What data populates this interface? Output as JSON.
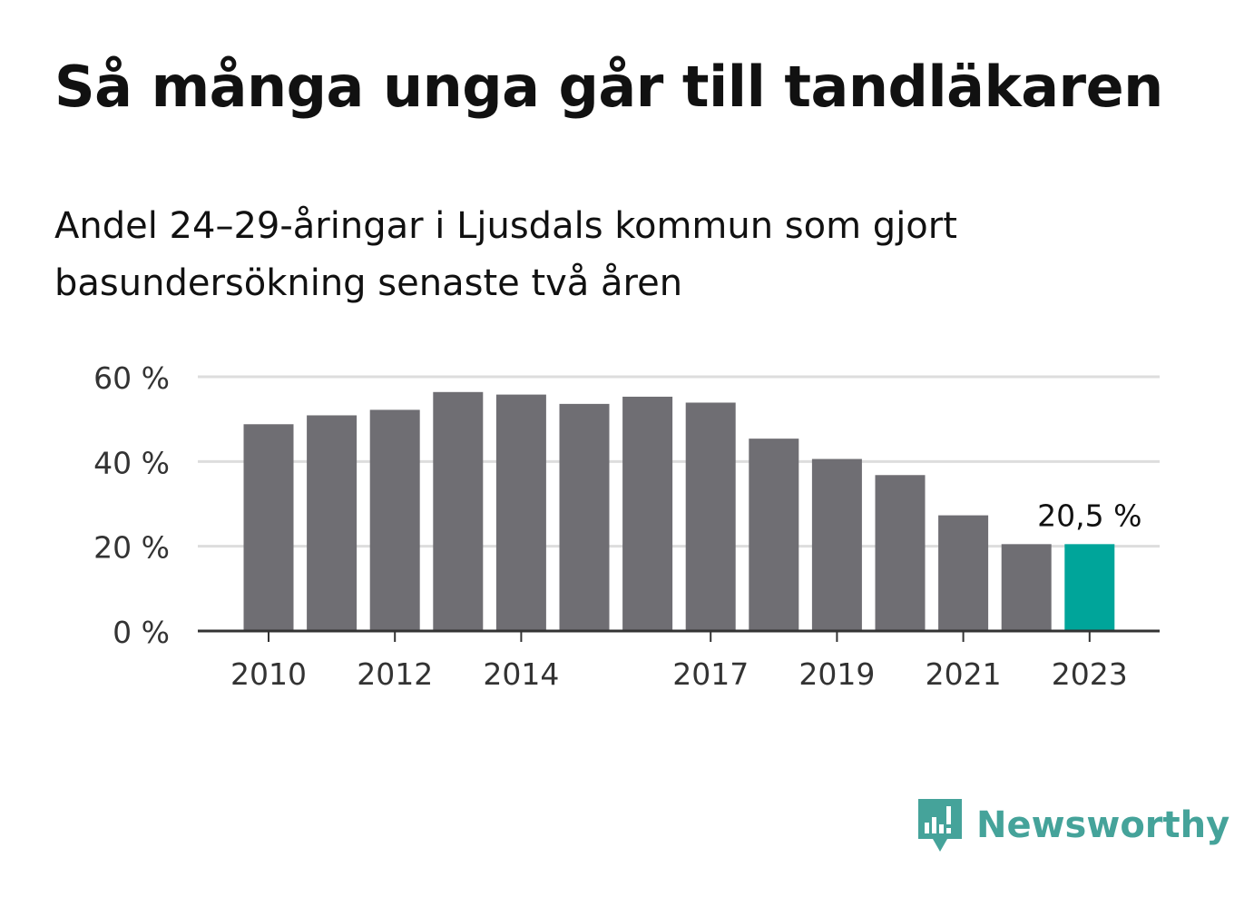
{
  "title": "Så många unga går till tandläkaren",
  "subtitle": "Andel 24–29-åringar i Ljusdals kommun som gjort basundersökning senaste två åren",
  "brand": "Newsworthy",
  "colors": {
    "bar": "#6f6e73",
    "highlight": "#00a59a",
    "grid": "#dddddd",
    "axis": "#333333",
    "brand": "#45a39a"
  },
  "chart_data": {
    "type": "bar",
    "categories": [
      "2010",
      "2011",
      "2012",
      "2013",
      "2014",
      "2015",
      "2016",
      "2017",
      "2018",
      "2019",
      "2020",
      "2021",
      "2022",
      "2023"
    ],
    "values": [
      48.8,
      50.9,
      52.2,
      56.4,
      55.8,
      53.6,
      55.3,
      53.9,
      45.4,
      40.6,
      36.8,
      27.3,
      20.5,
      20.5
    ],
    "highlight_index": 13,
    "highlight_label": "20,5 %",
    "ylim": [
      0,
      60
    ],
    "yticks": [
      0,
      20,
      40,
      60
    ],
    "ytick_labels": [
      "0 %",
      "20 %",
      "40 %",
      "60 %"
    ],
    "xtick_labels": [
      "2010",
      "2012",
      "2014",
      "2017",
      "2019",
      "2021",
      "2023"
    ],
    "xtick_indices": [
      0,
      2,
      4,
      7,
      9,
      11,
      13
    ],
    "grid": true
  }
}
